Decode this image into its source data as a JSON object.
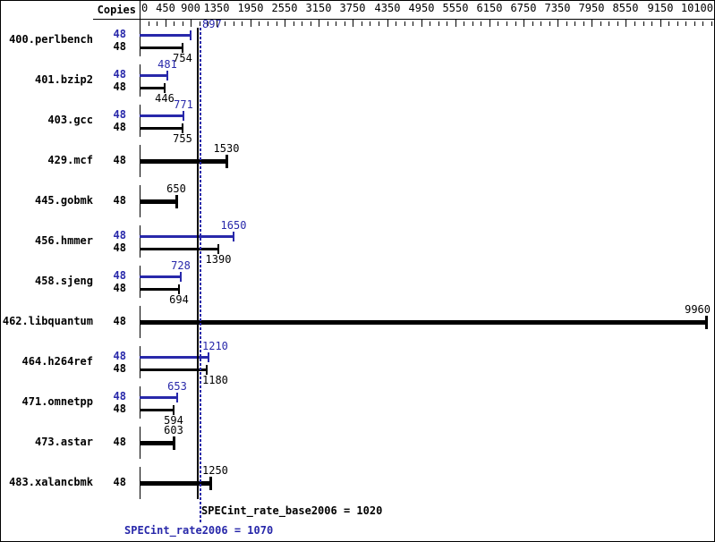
{
  "header": {
    "copies_label": "Copies"
  },
  "colors": {
    "peak_blue": "#2828aa",
    "base_black": "#000000",
    "background": "#ffffff"
  },
  "summary": {
    "base_label": "SPECint_rate_base2006",
    "base_value": 1020,
    "base_text": "SPECint_rate_base2006 = 1020",
    "peak_label": "SPECint_rate2006",
    "peak_value": 1070,
    "peak_text": "SPECint_rate2006 = 1070"
  },
  "chart_data": {
    "type": "bar",
    "orientation": "horizontal",
    "xlim": [
      0,
      10100
    ],
    "x_tick_labels": [
      0,
      450,
      900,
      1350,
      1950,
      2550,
      3150,
      3750,
      4350,
      4950,
      5550,
      6150,
      6750,
      7350,
      7950,
      8550,
      9150,
      10100
    ],
    "minor_tick_step": 150,
    "grid": false,
    "categories": [
      "400.perlbench",
      "401.bzip2",
      "403.gcc",
      "429.mcf",
      "445.gobmk",
      "456.hmmer",
      "458.sjeng",
      "462.libquantum",
      "464.h264ref",
      "471.omnetpp",
      "473.astar",
      "483.xalancbmk"
    ],
    "copies": [
      48,
      48,
      48,
      48,
      48,
      48,
      48,
      48,
      48,
      48,
      48,
      48
    ],
    "series": [
      {
        "name": "peak",
        "color": "#2828aa",
        "values": [
          897,
          481,
          771,
          null,
          null,
          1650,
          728,
          null,
          1210,
          653,
          null,
          null
        ]
      },
      {
        "name": "base",
        "color": "#000000",
        "values": [
          754,
          446,
          755,
          1530,
          650,
          1390,
          694,
          9960,
          1180,
          594,
          603,
          1250
        ]
      }
    ],
    "means": {
      "base": 1020,
      "peak": 1070
    }
  }
}
